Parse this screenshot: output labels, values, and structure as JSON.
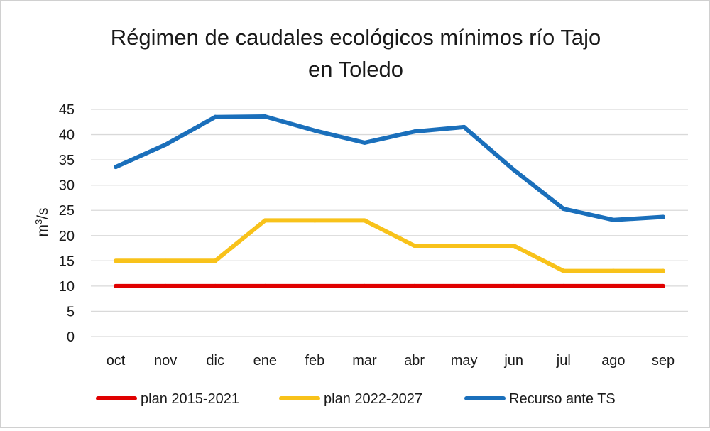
{
  "chart_data": {
    "type": "line",
    "title_line1": "Régimen de caudales ecológicos mínimos río Tajo",
    "title_line2": "en Toledo",
    "ylabel_base": "m",
    "ylabel_sup": "3",
    "ylabel_tail": "/s",
    "xlabel": "",
    "ylim": [
      0,
      45
    ],
    "yticks": [
      0,
      5,
      10,
      15,
      20,
      25,
      30,
      35,
      40,
      45
    ],
    "grid": true,
    "legend_position": "bottom",
    "categories": [
      "oct",
      "nov",
      "dic",
      "ene",
      "feb",
      "mar",
      "abr",
      "may",
      "jun",
      "jul",
      "ago",
      "sep"
    ],
    "series": [
      {
        "name": "plan 2015-2021",
        "color": "#e00000",
        "values": [
          10,
          10,
          10,
          10,
          10,
          10,
          10,
          10,
          10,
          10,
          10,
          10
        ]
      },
      {
        "name": "plan 2022-2027",
        "color": "#f8c21a",
        "values": [
          15,
          15,
          15,
          23,
          23,
          23,
          18,
          18,
          18,
          13,
          13,
          13
        ]
      },
      {
        "name": "Recurso ante TS",
        "color": "#1a6fbb",
        "values": [
          33.6,
          38,
          43.5,
          43.6,
          40.8,
          38.4,
          40.6,
          41.5,
          33,
          25.3,
          23.1,
          23.7
        ]
      }
    ]
  }
}
